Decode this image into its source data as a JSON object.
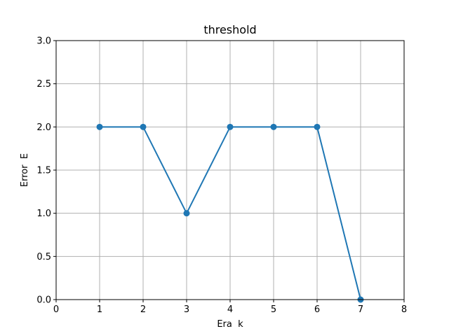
{
  "chart_data": {
    "type": "line",
    "title": "threshold",
    "xlabel": "Era  k",
    "ylabel": "Error  E",
    "xlim": [
      0,
      8
    ],
    "ylim": [
      0,
      3
    ],
    "xticks": [
      0,
      1,
      2,
      3,
      4,
      5,
      6,
      7,
      8
    ],
    "yticks": [
      0.0,
      0.5,
      1.0,
      1.5,
      2.0,
      2.5,
      3.0
    ],
    "xtick_labels": [
      "0",
      "1",
      "2",
      "3",
      "4",
      "5",
      "6",
      "7",
      "8"
    ],
    "ytick_labels": [
      "0.0",
      "0.5",
      "1.0",
      "1.5",
      "2.0",
      "2.5",
      "3.0"
    ],
    "grid": true,
    "marker": "circle",
    "color": "#1f77b4",
    "series": [
      {
        "x": [
          1,
          2,
          3,
          4,
          5,
          6,
          7
        ],
        "values": [
          2,
          2,
          1,
          2,
          2,
          2,
          0
        ]
      }
    ]
  }
}
